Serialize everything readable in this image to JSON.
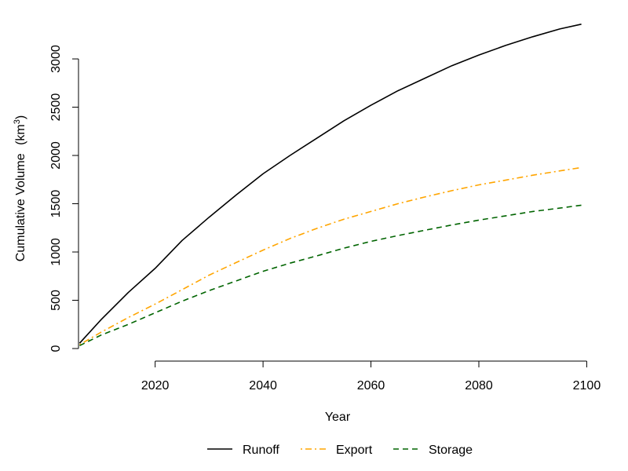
{
  "chart_data": {
    "type": "line",
    "title": "",
    "xlabel": "Year",
    "ylabel": "Cumulative Volume",
    "ylabel_unit_prefix": "km",
    "ylabel_unit_exponent": "3",
    "xlim": [
      2005.5,
      2099.5
    ],
    "ylim": [
      0,
      3350
    ],
    "xticks": [
      2020,
      2040,
      2060,
      2080,
      2100
    ],
    "yticks": [
      0,
      500,
      1000,
      1500,
      2000,
      2500,
      3000
    ],
    "grid": false,
    "legend_position": "bottom",
    "x": [
      2006,
      2010,
      2015,
      2020,
      2025,
      2030,
      2035,
      2040,
      2045,
      2050,
      2055,
      2060,
      2065,
      2070,
      2075,
      2080,
      2085,
      2090,
      2095,
      2099
    ],
    "series": [
      {
        "name": "Runoff",
        "color": "#000000",
        "dash": "solid",
        "values": [
          55,
          300,
          580,
          830,
          1120,
          1360,
          1590,
          1810,
          2000,
          2180,
          2360,
          2520,
          2670,
          2800,
          2930,
          3040,
          3140,
          3230,
          3310,
          3360
        ]
      },
      {
        "name": "Export",
        "color": "#FFA500",
        "dash": "dotdash",
        "values": [
          40,
          170,
          320,
          460,
          610,
          760,
          890,
          1020,
          1140,
          1245,
          1340,
          1420,
          1500,
          1570,
          1635,
          1695,
          1745,
          1795,
          1840,
          1875
        ]
      },
      {
        "name": "Storage",
        "color": "#006400",
        "dash": "dashed",
        "values": [
          30,
          140,
          250,
          370,
          490,
          600,
          700,
          800,
          885,
          960,
          1040,
          1110,
          1170,
          1225,
          1280,
          1330,
          1375,
          1420,
          1455,
          1485
        ]
      }
    ]
  }
}
